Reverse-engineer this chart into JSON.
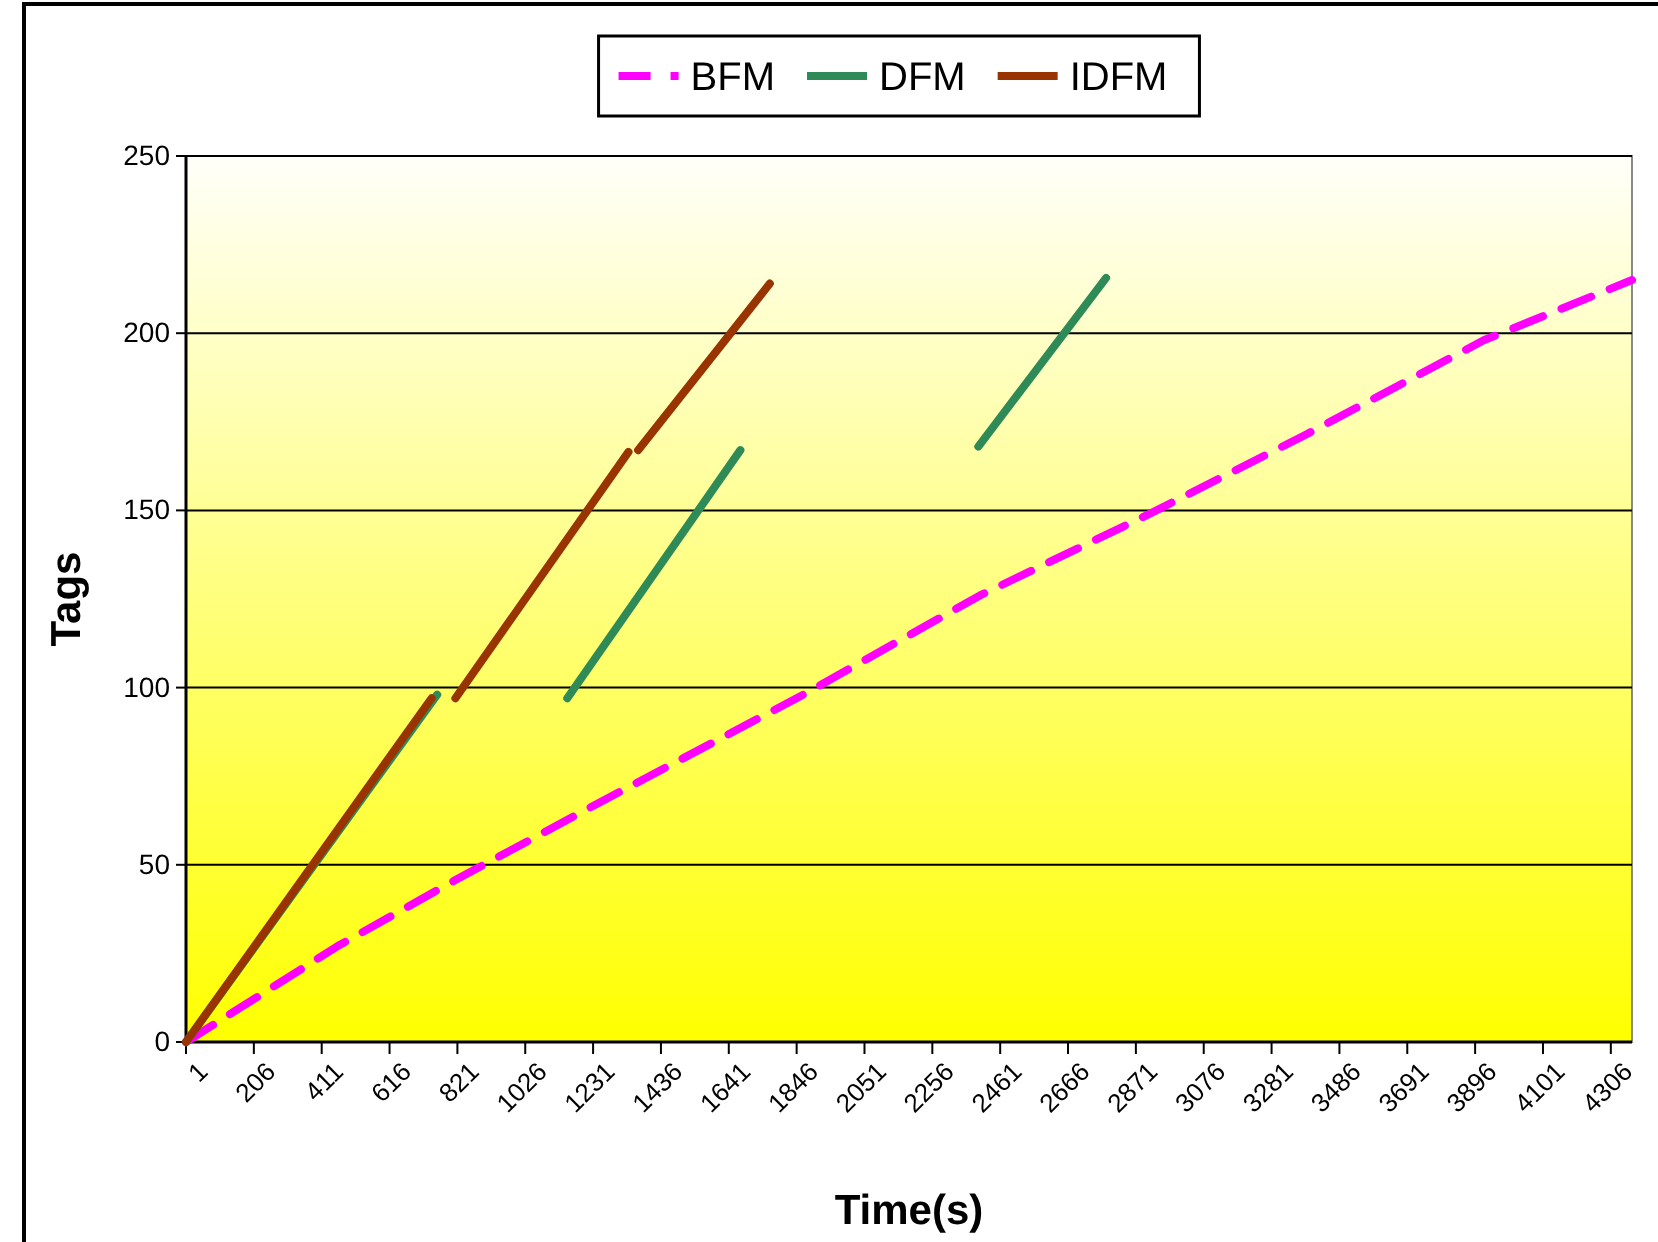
{
  "chart_data": {
    "type": "line",
    "xlabel": "Time(s)",
    "ylabel": "Tags",
    "xlim": [
      1,
      4370
    ],
    "ylim": [
      0,
      250
    ],
    "xticks": [
      1,
      206,
      411,
      616,
      821,
      1026,
      1231,
      1436,
      1641,
      1846,
      2051,
      2256,
      2461,
      2666,
      2871,
      3076,
      3281,
      3486,
      3691,
      3896,
      4101,
      4306
    ],
    "yticks": [
      0,
      50,
      100,
      150,
      200,
      250
    ],
    "grid": "y",
    "legend": "top",
    "marker": "none",
    "series": [
      {
        "name": "BFM",
        "color": "#ff00ff",
        "line_style": "dashed",
        "x": [
          1,
          458,
          815,
          1231,
          1866,
          2400,
          2912,
          3387,
          3922,
          4370
        ],
        "values": [
          0,
          27,
          45.7,
          66.6,
          98,
          126,
          149,
          171.5,
          198,
          215
        ]
      },
      {
        "name": "DFM",
        "color": "#2e8b57",
        "line_style": "solid",
        "x": [
          1,
          760,
          900,
          1153,
          1676,
          2000,
          2395,
          2781
        ],
        "values": [
          0,
          98,
          null,
          97,
          167,
          null,
          168,
          215.6
        ]
      },
      {
        "name": "IDFM",
        "color": "#993300",
        "line_style": "solid",
        "x": [
          1,
          743,
          780,
          815,
          1338,
          1350,
          1367,
          1765
        ],
        "values": [
          0,
          97,
          null,
          97,
          166.5,
          null,
          167,
          214
        ]
      }
    ]
  }
}
